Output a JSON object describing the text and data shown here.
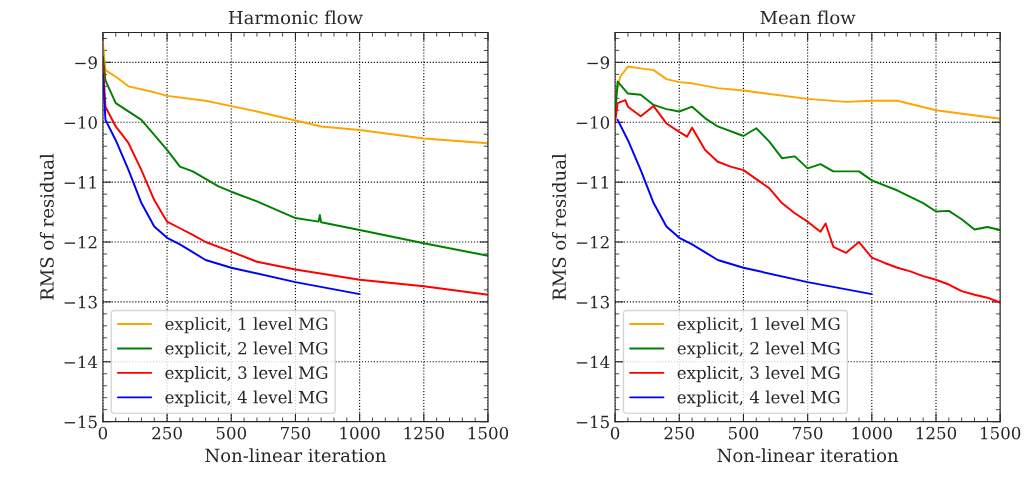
{
  "chart_data": [
    {
      "type": "line",
      "title": "Harmonic flow",
      "xlabel": "Non-linear iteration",
      "ylabel": "RMS of residual",
      "xlim": [
        0,
        1500
      ],
      "ylim": [
        -15,
        -8.5
      ],
      "xticks": [
        0,
        250,
        500,
        750,
        1000,
        1250,
        1500
      ],
      "yticks": [
        -15,
        -14,
        -13,
        -12,
        -11,
        -10,
        -9
      ],
      "grid": true,
      "legend": "bottom left",
      "line_style": "solid",
      "marker": "none",
      "series": [
        {
          "name": "explicit, 1 level MG",
          "color": "#ffa500",
          "x": [
            0,
            10,
            50,
            100,
            200,
            250,
            400,
            500,
            600,
            750,
            850,
            1000,
            1250,
            1500
          ],
          "values": [
            -8.68,
            -9.13,
            -9.24,
            -9.4,
            -9.5,
            -9.56,
            -9.64,
            -9.73,
            -9.82,
            -9.97,
            -10.07,
            -10.13,
            -10.27,
            -10.35
          ]
        },
        {
          "name": "explicit, 2 level MG",
          "color": "#008000",
          "x": [
            0,
            10,
            50,
            150,
            250,
            300,
            350,
            450,
            500,
            600,
            750,
            840,
            845,
            850,
            1000,
            1250,
            1500
          ],
          "values": [
            -8.9,
            -9.3,
            -9.68,
            -9.96,
            -10.46,
            -10.74,
            -10.82,
            -11.07,
            -11.16,
            -11.32,
            -11.6,
            -11.66,
            -11.55,
            -11.67,
            -11.8,
            -12.02,
            -12.23
          ]
        },
        {
          "name": "explicit, 3 level MG",
          "color": "#ff0000",
          "x": [
            0,
            10,
            50,
            100,
            150,
            200,
            250,
            300,
            350,
            400,
            500,
            600,
            750,
            1000,
            1250,
            1500
          ],
          "values": [
            -9.0,
            -9.74,
            -10.07,
            -10.35,
            -10.8,
            -11.3,
            -11.66,
            -11.77,
            -11.88,
            -12.0,
            -12.16,
            -12.33,
            -12.46,
            -12.63,
            -12.74,
            -12.88
          ]
        },
        {
          "name": "explicit, 4 level MG",
          "color": "#0000ff",
          "x": [
            0,
            10,
            50,
            100,
            150,
            200,
            250,
            300,
            400,
            500,
            750,
            1000
          ],
          "values": [
            -9.2,
            -9.96,
            -10.3,
            -10.8,
            -11.35,
            -11.74,
            -11.93,
            -12.04,
            -12.3,
            -12.43,
            -12.67,
            -12.87
          ]
        }
      ]
    },
    {
      "type": "line",
      "title": "Mean flow",
      "xlabel": "Non-linear iteration",
      "ylabel": "RMS of residual",
      "xlim": [
        0,
        1500
      ],
      "ylim": [
        -15,
        -8.5
      ],
      "xticks": [
        0,
        250,
        500,
        750,
        1000,
        1250,
        1500
      ],
      "yticks": [
        -15,
        -14,
        -13,
        -12,
        -11,
        -10,
        -9
      ],
      "grid": true,
      "legend": "bottom left",
      "line_style": "solid",
      "marker": "none",
      "series": [
        {
          "name": "explicit, 1 level MG",
          "color": "#ffa500",
          "x": [
            0,
            20,
            50,
            100,
            150,
            200,
            250,
            300,
            400,
            500,
            750,
            900,
            1000,
            1100,
            1250,
            1500
          ],
          "values": [
            -9.6,
            -9.24,
            -9.07,
            -9.1,
            -9.13,
            -9.28,
            -9.33,
            -9.35,
            -9.43,
            -9.47,
            -9.61,
            -9.66,
            -9.64,
            -9.64,
            -9.8,
            -9.94
          ]
        },
        {
          "name": "explicit, 2 level MG",
          "color": "#008000",
          "x": [
            0,
            10,
            50,
            100,
            150,
            200,
            250,
            300,
            350,
            400,
            500,
            550,
            600,
            650,
            700,
            750,
            800,
            850,
            950,
            1000,
            1100,
            1200,
            1250,
            1300,
            1350,
            1400,
            1450,
            1500
          ],
          "values": [
            -9.9,
            -9.32,
            -9.52,
            -9.54,
            -9.71,
            -9.78,
            -9.82,
            -9.74,
            -9.93,
            -10.07,
            -10.23,
            -10.1,
            -10.32,
            -10.6,
            -10.57,
            -10.77,
            -10.7,
            -10.82,
            -10.82,
            -10.97,
            -11.14,
            -11.35,
            -11.49,
            -11.48,
            -11.62,
            -11.79,
            -11.75,
            -11.8
          ]
        },
        {
          "name": "explicit, 3 level MG",
          "color": "#ff0000",
          "x": [
            0,
            10,
            40,
            50,
            100,
            150,
            200,
            250,
            280,
            300,
            350,
            400,
            450,
            500,
            600,
            650,
            700,
            750,
            800,
            820,
            850,
            900,
            950,
            1000,
            1050,
            1100,
            1150,
            1200,
            1250,
            1300,
            1350,
            1400,
            1450,
            1500
          ],
          "values": [
            -10.0,
            -9.68,
            -9.63,
            -9.74,
            -9.9,
            -9.73,
            -10.02,
            -10.16,
            -10.24,
            -10.09,
            -10.46,
            -10.66,
            -10.74,
            -10.8,
            -11.1,
            -11.35,
            -11.52,
            -11.66,
            -11.83,
            -11.69,
            -12.08,
            -12.18,
            -12.0,
            -12.26,
            -12.35,
            -12.43,
            -12.49,
            -12.57,
            -12.63,
            -12.71,
            -12.82,
            -12.88,
            -12.93,
            -13.01
          ]
        },
        {
          "name": "explicit, 4 level MG",
          "color": "#0000ff",
          "x": [
            10,
            50,
            100,
            150,
            200,
            250,
            300,
            400,
            500,
            750,
            1000
          ],
          "values": [
            -9.96,
            -10.3,
            -10.8,
            -11.35,
            -11.74,
            -11.93,
            -12.04,
            -12.3,
            -12.43,
            -12.67,
            -12.87
          ]
        }
      ]
    }
  ]
}
